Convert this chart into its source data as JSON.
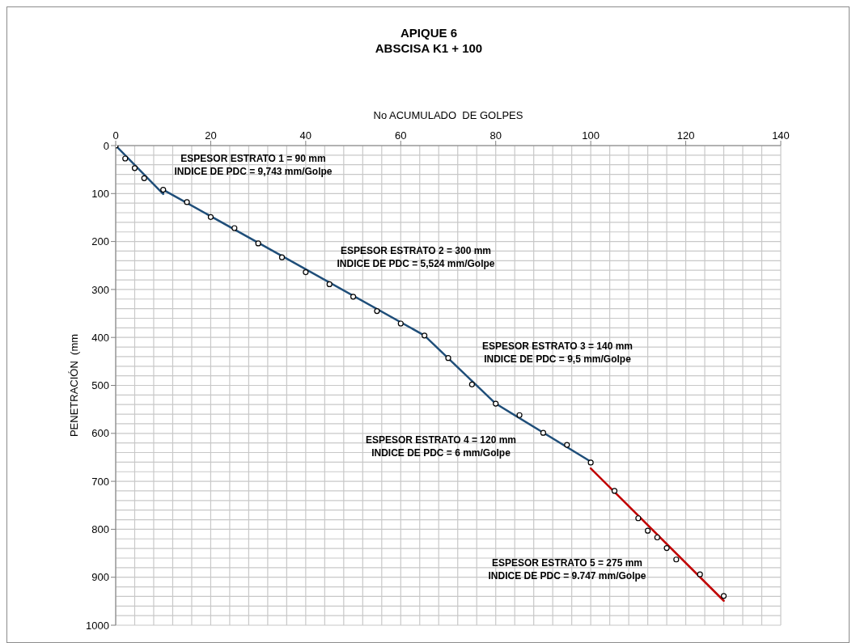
{
  "chart_data": {
    "type": "scatter",
    "title": "APIQUE 6",
    "subtitle": "ABSCISA K1 + 100",
    "xlabel": "No ACUMULADO  DE GOLPES",
    "ylabel": "PENETRACIÓN  (mm",
    "xlim": [
      0,
      140
    ],
    "xticks": [
      0,
      20,
      40,
      60,
      80,
      100,
      120,
      140
    ],
    "ylim": [
      1000,
      0
    ],
    "yticks": [
      0,
      100,
      200,
      300,
      400,
      500,
      600,
      700,
      800,
      900,
      1000
    ],
    "grid": true,
    "series": [
      {
        "type": "line",
        "color": "#1f4e79",
        "x": [
          0,
          10,
          10,
          65,
          80,
          100
        ],
        "values": [
          0,
          101,
          92,
          396,
          538,
          659
        ]
      },
      {
        "type": "line",
        "color": "#c00000",
        "x": [
          100,
          128
        ],
        "values": [
          673,
          949
        ]
      },
      {
        "color": "#000000",
        "marker": "circle",
        "x": [
          0,
          2,
          4,
          6,
          10,
          15,
          20,
          25,
          30,
          35,
          40,
          45,
          50,
          55,
          60,
          65,
          70,
          75,
          80,
          85,
          90,
          95,
          100,
          105,
          110,
          112,
          114,
          116,
          118,
          123,
          128
        ],
        "values": [
          0,
          27,
          47,
          68,
          92,
          118,
          149,
          172,
          204,
          233,
          264,
          289,
          315,
          345,
          371,
          396,
          443,
          498,
          538,
          562,
          599,
          624,
          661,
          720,
          777,
          803,
          817,
          839,
          863,
          894,
          939
        ]
      }
    ],
    "annotations": [
      "ESPESOR ESTRATO 1 = 90 mm\nINDICE DE PDC = 9,743 mm/Golpe",
      "ESPESOR ESTRATO 2 = 300 mm\nINDICE DE PDC = 5,524 mm/Golpe",
      "ESPESOR ESTRATO 3 = 140 mm\nINDICE DE PDC = 9,5 mm/Golpe",
      "ESPESOR ESTRATO 4 = 120 mm\nINDICE DE PDC = 6 mm/Golpe",
      "ESPESOR ESTRATO 5 = 275 mm\nINDICE DE PDC = 9.747 mm/Golpe"
    ]
  }
}
